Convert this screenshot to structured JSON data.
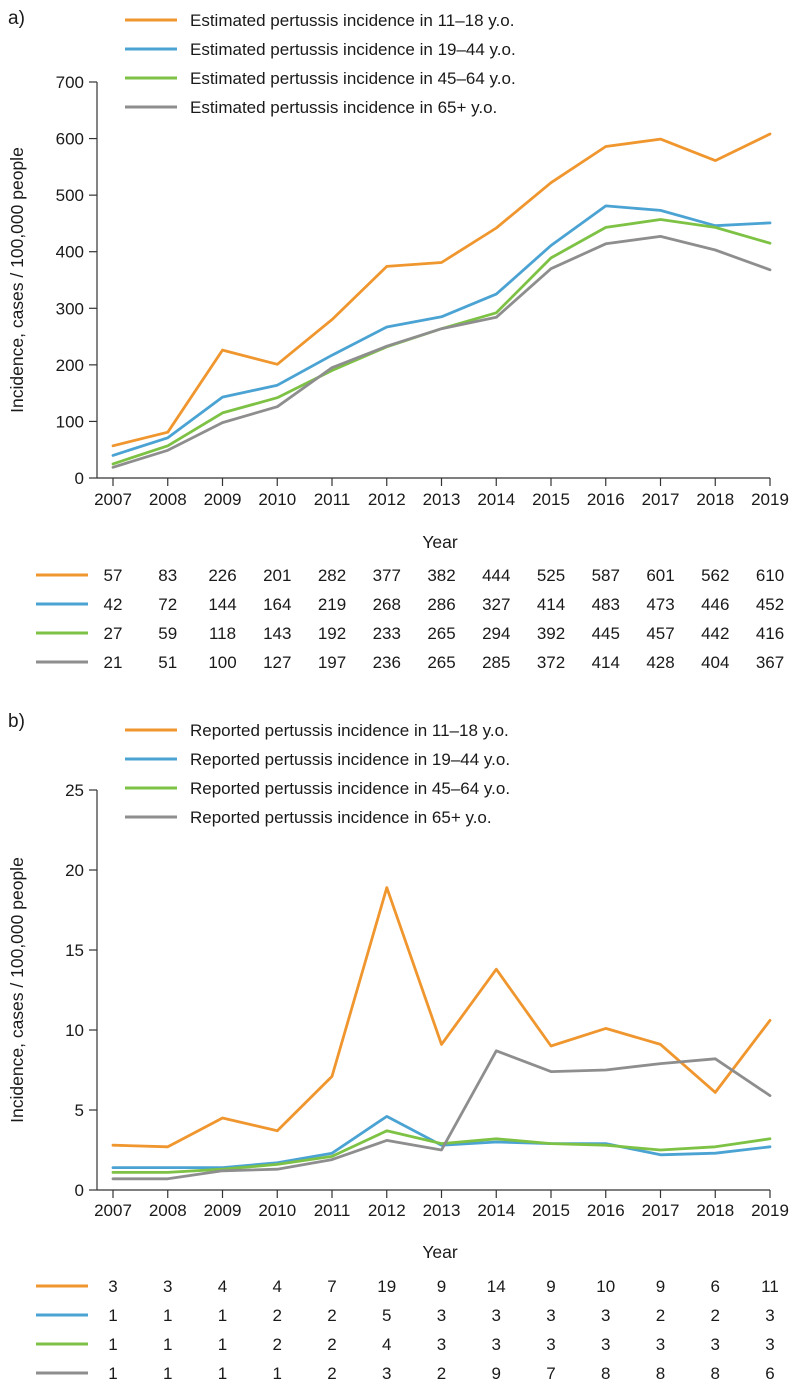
{
  "colors": {
    "s1118": "#f0962e",
    "s1944": "#4ba3d3",
    "s4564": "#7dc244",
    "s65": "#8e8e8e",
    "axis": "#333333"
  },
  "chart_data": [
    {
      "panel": "a)",
      "type": "line",
      "xlabel": "Year",
      "ylabel": "Incidence, cases / 100,000 people",
      "ylim": [
        0,
        700
      ],
      "yticks": [
        0,
        100,
        200,
        300,
        400,
        500,
        600,
        700
      ],
      "categories": [
        "2007",
        "2008",
        "2009",
        "2010",
        "2011",
        "2012",
        "2013",
        "2014",
        "2015",
        "2016",
        "2017",
        "2018",
        "2019"
      ],
      "series": [
        {
          "key": "s1118",
          "name": "Estimated pertussis incidence in 11–18 y.o.",
          "values": [
            57,
            83,
            226,
            201,
            282,
            377,
            382,
            444,
            525,
            587,
            601,
            562,
            610
          ]
        },
        {
          "key": "s1944",
          "name": "Estimated pertussis incidence in 19–44 y.o.",
          "values": [
            42,
            72,
            144,
            164,
            219,
            268,
            286,
            327,
            414,
            483,
            473,
            446,
            452
          ]
        },
        {
          "key": "s4564",
          "name": "Estimated pertussis incidence in 45–64 y.o.",
          "values": [
            27,
            59,
            118,
            143,
            192,
            233,
            265,
            294,
            392,
            445,
            457,
            442,
            416
          ]
        },
        {
          "key": "s65",
          "name": "Estimated pertussis incidence in 65+ y.o.",
          "values": [
            21,
            51,
            100,
            127,
            197,
            236,
            265,
            285,
            372,
            414,
            428,
            404,
            367
          ]
        }
      ],
      "plotted": [
        [
          57,
          81,
          226,
          201,
          280,
          374,
          381,
          442,
          522,
          586,
          599,
          561,
          608
        ],
        [
          40,
          71,
          143,
          164,
          217,
          267,
          285,
          325,
          411,
          481,
          473,
          446,
          451
        ],
        [
          25,
          57,
          115,
          142,
          190,
          232,
          264,
          292,
          389,
          443,
          457,
          443,
          415
        ],
        [
          19,
          49,
          98,
          126,
          195,
          233,
          264,
          284,
          370,
          414,
          427,
          403,
          368
        ]
      ],
      "table_rows": [
        [
          "57",
          "83",
          "226",
          "201",
          "282",
          "377",
          "382",
          "444",
          "525",
          "587",
          "601",
          "562",
          "610"
        ],
        [
          "42",
          "72",
          "144",
          "164",
          "219",
          "268",
          "286",
          "327",
          "414",
          "483",
          "473",
          "446",
          "452"
        ],
        [
          "27",
          "59",
          "118",
          "143",
          "192",
          "233",
          "265",
          "294",
          "392",
          "445",
          "457",
          "442",
          "416"
        ],
        [
          "21",
          "51",
          "100",
          "127",
          "197",
          "236",
          "265",
          "285",
          "372",
          "414",
          "428",
          "404",
          "367"
        ]
      ]
    },
    {
      "panel": "b)",
      "type": "line",
      "xlabel": "Year",
      "ylabel": "Incidence, cases / 100,000 people",
      "ylim": [
        0,
        25
      ],
      "yticks": [
        0,
        5,
        10,
        15,
        20,
        25
      ],
      "categories": [
        "2007",
        "2008",
        "2009",
        "2010",
        "2011",
        "2012",
        "2013",
        "2014",
        "2015",
        "2016",
        "2017",
        "2018",
        "2019"
      ],
      "series": [
        {
          "key": "s1118",
          "name": "Reported pertussis incidence in 11–18 y.o.",
          "values": [
            2.8,
            2.7,
            4.5,
            3.7,
            7.1,
            18.9,
            9.1,
            13.8,
            9.0,
            10.1,
            9.1,
            6.1,
            10.6
          ]
        },
        {
          "key": "s1944",
          "name": "Reported pertussis incidence in 19–44 y.o.",
          "values": [
            1.4,
            1.4,
            1.4,
            1.7,
            2.3,
            4.6,
            2.8,
            3.0,
            2.9,
            2.9,
            2.2,
            2.3,
            2.7
          ]
        },
        {
          "key": "s4564",
          "name": "Reported pertussis incidence in 45–64 y.o.",
          "values": [
            1.1,
            1.1,
            1.3,
            1.6,
            2.1,
            3.7,
            2.9,
            3.2,
            2.9,
            2.8,
            2.5,
            2.7,
            3.2
          ]
        },
        {
          "key": "s65",
          "name": "Reported pertussis incidence in 65+ y.o.",
          "values": [
            0.7,
            0.7,
            1.2,
            1.3,
            1.9,
            3.1,
            2.5,
            8.7,
            7.4,
            7.5,
            7.9,
            8.2,
            5.9
          ]
        }
      ],
      "table_rows": [
        [
          "3",
          "3",
          "4",
          "4",
          "7",
          "19",
          "9",
          "14",
          "9",
          "10",
          "9",
          "6",
          "11"
        ],
        [
          "1",
          "1",
          "1",
          "2",
          "2",
          "5",
          "3",
          "3",
          "3",
          "3",
          "2",
          "2",
          "3"
        ],
        [
          "1",
          "1",
          "1",
          "2",
          "2",
          "4",
          "3",
          "3",
          "3",
          "3",
          "3",
          "3",
          "3"
        ],
        [
          "1",
          "1",
          "1",
          "1",
          "2",
          "3",
          "2",
          "9",
          "7",
          "8",
          "8",
          "8",
          "6"
        ]
      ]
    }
  ]
}
